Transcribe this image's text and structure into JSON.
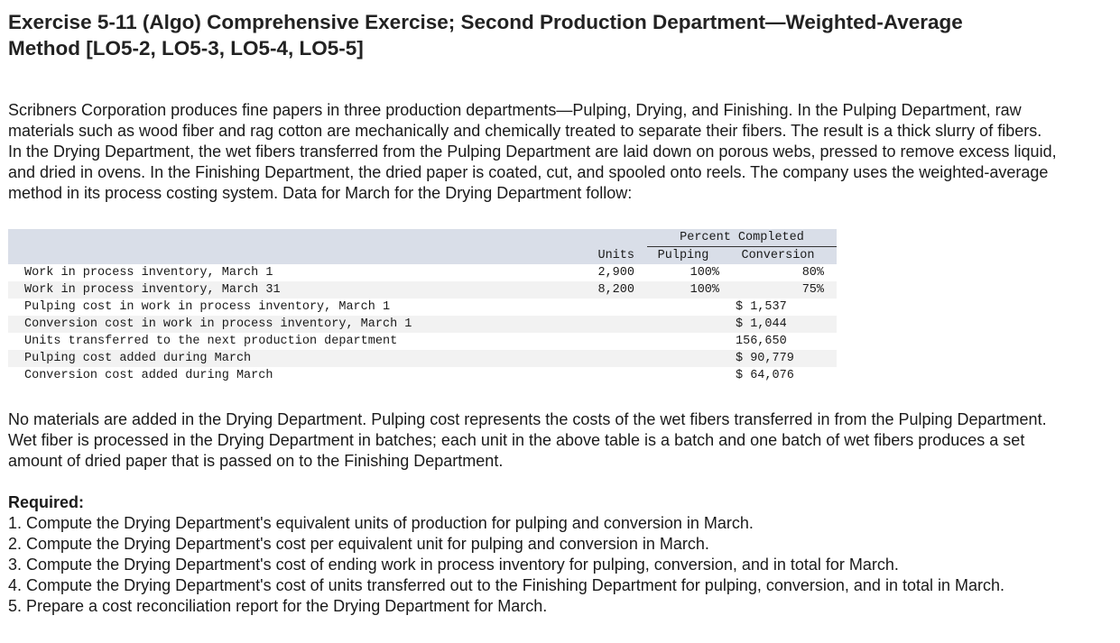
{
  "header": {
    "title": "Exercise 5-11 (Algo) Comprehensive Exercise; Second Production Department—Weighted-Average Method [LO5-2, LO5-3, LO5-4, LO5-5]"
  },
  "intro": "Scribners Corporation produces fine papers in three production departments—Pulping, Drying, and Finishing. In the Pulping Department, raw materials such as wood fiber and rag cotton are mechanically and chemically treated to separate their fibers. The result is a thick slurry of fibers. In the Drying Department, the wet fibers transferred from the Pulping Department are laid down on porous webs, pressed to remove excess liquid, and dried in ovens. In the Finishing Department, the dried paper is coated, cut, and spooled onto reels. The company uses the weighted-average method in its process costing system. Data for March for the Drying Department follow:",
  "table": {
    "group_header": "Percent Completed",
    "columns": [
      "Units",
      "Pulping",
      "Conversion"
    ],
    "rows": [
      {
        "label": "Work in process inventory, March 1",
        "units": "2,900",
        "pulping": "100%",
        "conversion": "80%"
      },
      {
        "label": "Work in process inventory, March 31",
        "units": "8,200",
        "pulping": "100%",
        "conversion": "75%"
      },
      {
        "label": "Pulping cost in work in process inventory, March 1",
        "conversion": "$ 1,537"
      },
      {
        "label": "Conversion cost in work in process inventory, March 1",
        "conversion": "$ 1,044"
      },
      {
        "label": "Units transferred to the next production department",
        "conversion": "156,650"
      },
      {
        "label": "Pulping cost added during March",
        "conversion": "$ 90,779"
      },
      {
        "label": "Conversion cost added during March",
        "conversion": "$ 64,076"
      }
    ]
  },
  "note": "No materials are added in the Drying Department. Pulping cost represents the costs of the wet fibers transferred in from the Pulping Department. Wet fiber is processed in the Drying Department in batches; each unit in the above table is a batch and one batch of wet fibers produces a set amount of dried paper that is passed on to the Finishing Department.",
  "required": {
    "title": "Required:",
    "items": [
      "1. Compute the Drying Department's equivalent units of production for pulping and conversion in March.",
      "2. Compute the Drying Department's cost per equivalent unit for pulping and conversion in March.",
      "3. Compute the Drying Department's cost of ending work in process inventory for pulping, conversion, and in total for March.",
      "4. Compute the Drying Department's cost of units transferred out to the Finishing Department for pulping, conversion, and in total in March.",
      "5. Prepare a cost reconciliation report for the Drying Department for March."
    ]
  }
}
